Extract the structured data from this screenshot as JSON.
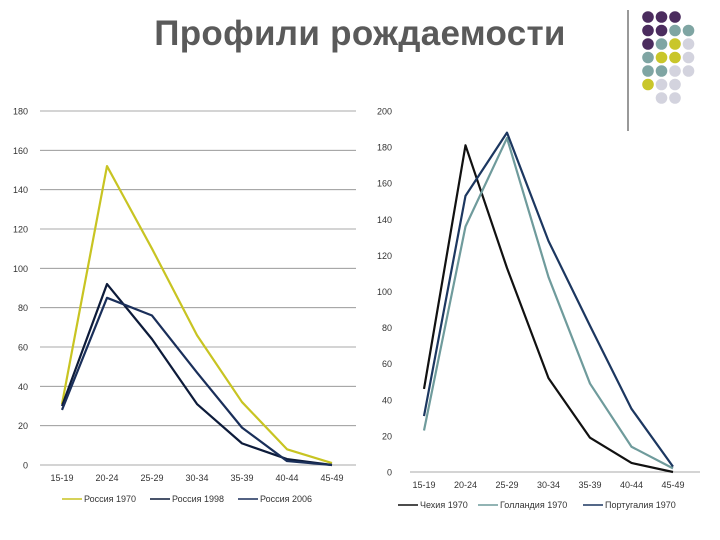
{
  "slide": {
    "title": "Профили рождаемости"
  },
  "decoration": {
    "name": "dot-grid-ornament",
    "colors": {
      "purple": "#4b2c5e",
      "teal": "#7fa5a3",
      "olive": "#c9c62a",
      "lavender": "#d3d3de",
      "divider": "#555555"
    },
    "dots": [
      [
        "purple",
        "purple",
        "purple",
        null
      ],
      [
        "purple",
        "purple",
        "teal",
        "teal"
      ],
      [
        "purple",
        "teal",
        "olive",
        "lavender"
      ],
      [
        "teal",
        "olive",
        "olive",
        "lavender"
      ],
      [
        "teal",
        "teal",
        "lavender",
        "lavender"
      ],
      [
        "olive",
        "lavender",
        "lavender",
        null
      ],
      [
        null,
        "lavender",
        "lavender",
        null
      ]
    ]
  },
  "chart_data": [
    {
      "type": "line",
      "categories": [
        "15-19",
        "20-24",
        "25-29",
        "30-34",
        "35-39",
        "40-44",
        "45-49"
      ],
      "yticks": [
        "0",
        "20",
        "40",
        "60",
        "80",
        "100",
        "120",
        "140",
        "160",
        "180"
      ],
      "ylim": [
        0,
        180
      ],
      "grid": true,
      "legend_position": "bottom",
      "series": [
        {
          "name": "Россия 1970",
          "color": "#c8c422",
          "values": [
            31,
            152,
            110,
            66,
            32,
            8,
            1
          ]
        },
        {
          "name": "Россия 1998",
          "color": "#0d1b3a",
          "values": [
            30,
            92,
            64,
            31,
            11,
            3,
            0
          ]
        },
        {
          "name": "Россия 2006",
          "color": "#1a2f5a",
          "values": [
            28,
            85,
            76,
            47,
            19,
            2,
            0
          ]
        }
      ]
    },
    {
      "type": "line",
      "categories": [
        "15-19",
        "20-24",
        "25-29",
        "30-34",
        "35-39",
        "40-44",
        "45-49"
      ],
      "yticks": [
        "0",
        "20",
        "40",
        "60",
        "80",
        "100",
        "120",
        "140",
        "160",
        "180",
        "200"
      ],
      "ylim": [
        0,
        200
      ],
      "grid": false,
      "legend_position": "bottom",
      "series": [
        {
          "name": "Чехия 1970",
          "color": "#111111",
          "values": [
            46,
            181,
            113,
            52,
            19,
            5,
            0
          ]
        },
        {
          "name": "Голландия 1970",
          "color": "#6f9b9c",
          "values": [
            23,
            136,
            185,
            108,
            49,
            14,
            2
          ]
        },
        {
          "name": "Португалия 1970",
          "color": "#1c3760",
          "values": [
            31,
            153,
            188,
            128,
            81,
            35,
            3
          ]
        }
      ]
    }
  ]
}
